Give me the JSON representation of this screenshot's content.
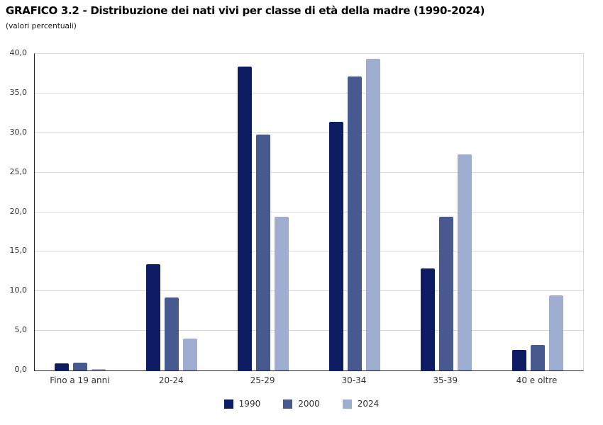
{
  "chart_data": {
    "type": "bar",
    "title": "GRAFICO 3.2 - Distribuzione dei nati vivi per classe di età della madre (1990-2024)",
    "subtitle": "(valori percentuali)",
    "categories": [
      "Fino a 19 anni",
      "20-24",
      "25-29",
      "30-34",
      "35-39",
      "40 e oltre"
    ],
    "series": [
      {
        "name": "1990",
        "color": "#0e1d63",
        "values": [
          0.9,
          13.4,
          38.4,
          31.4,
          12.9,
          2.6
        ]
      },
      {
        "name": "2000",
        "color": "#47598f",
        "values": [
          1.0,
          9.2,
          29.8,
          37.1,
          19.4,
          3.2
        ]
      },
      {
        "name": "2024",
        "color": "#9fadd1",
        "values": [
          0.2,
          4.0,
          19.4,
          39.4,
          27.3,
          9.5
        ]
      }
    ],
    "xlabel": "",
    "ylabel": "",
    "ylim": [
      0,
      40
    ],
    "ytick_step": 5,
    "ytick_labels": [
      "0,0",
      "5,0",
      "10,0",
      "15,0",
      "20,0",
      "25,0",
      "30,0",
      "35,0",
      "40,0"
    ],
    "grid": true,
    "legend_position": "bottom"
  }
}
